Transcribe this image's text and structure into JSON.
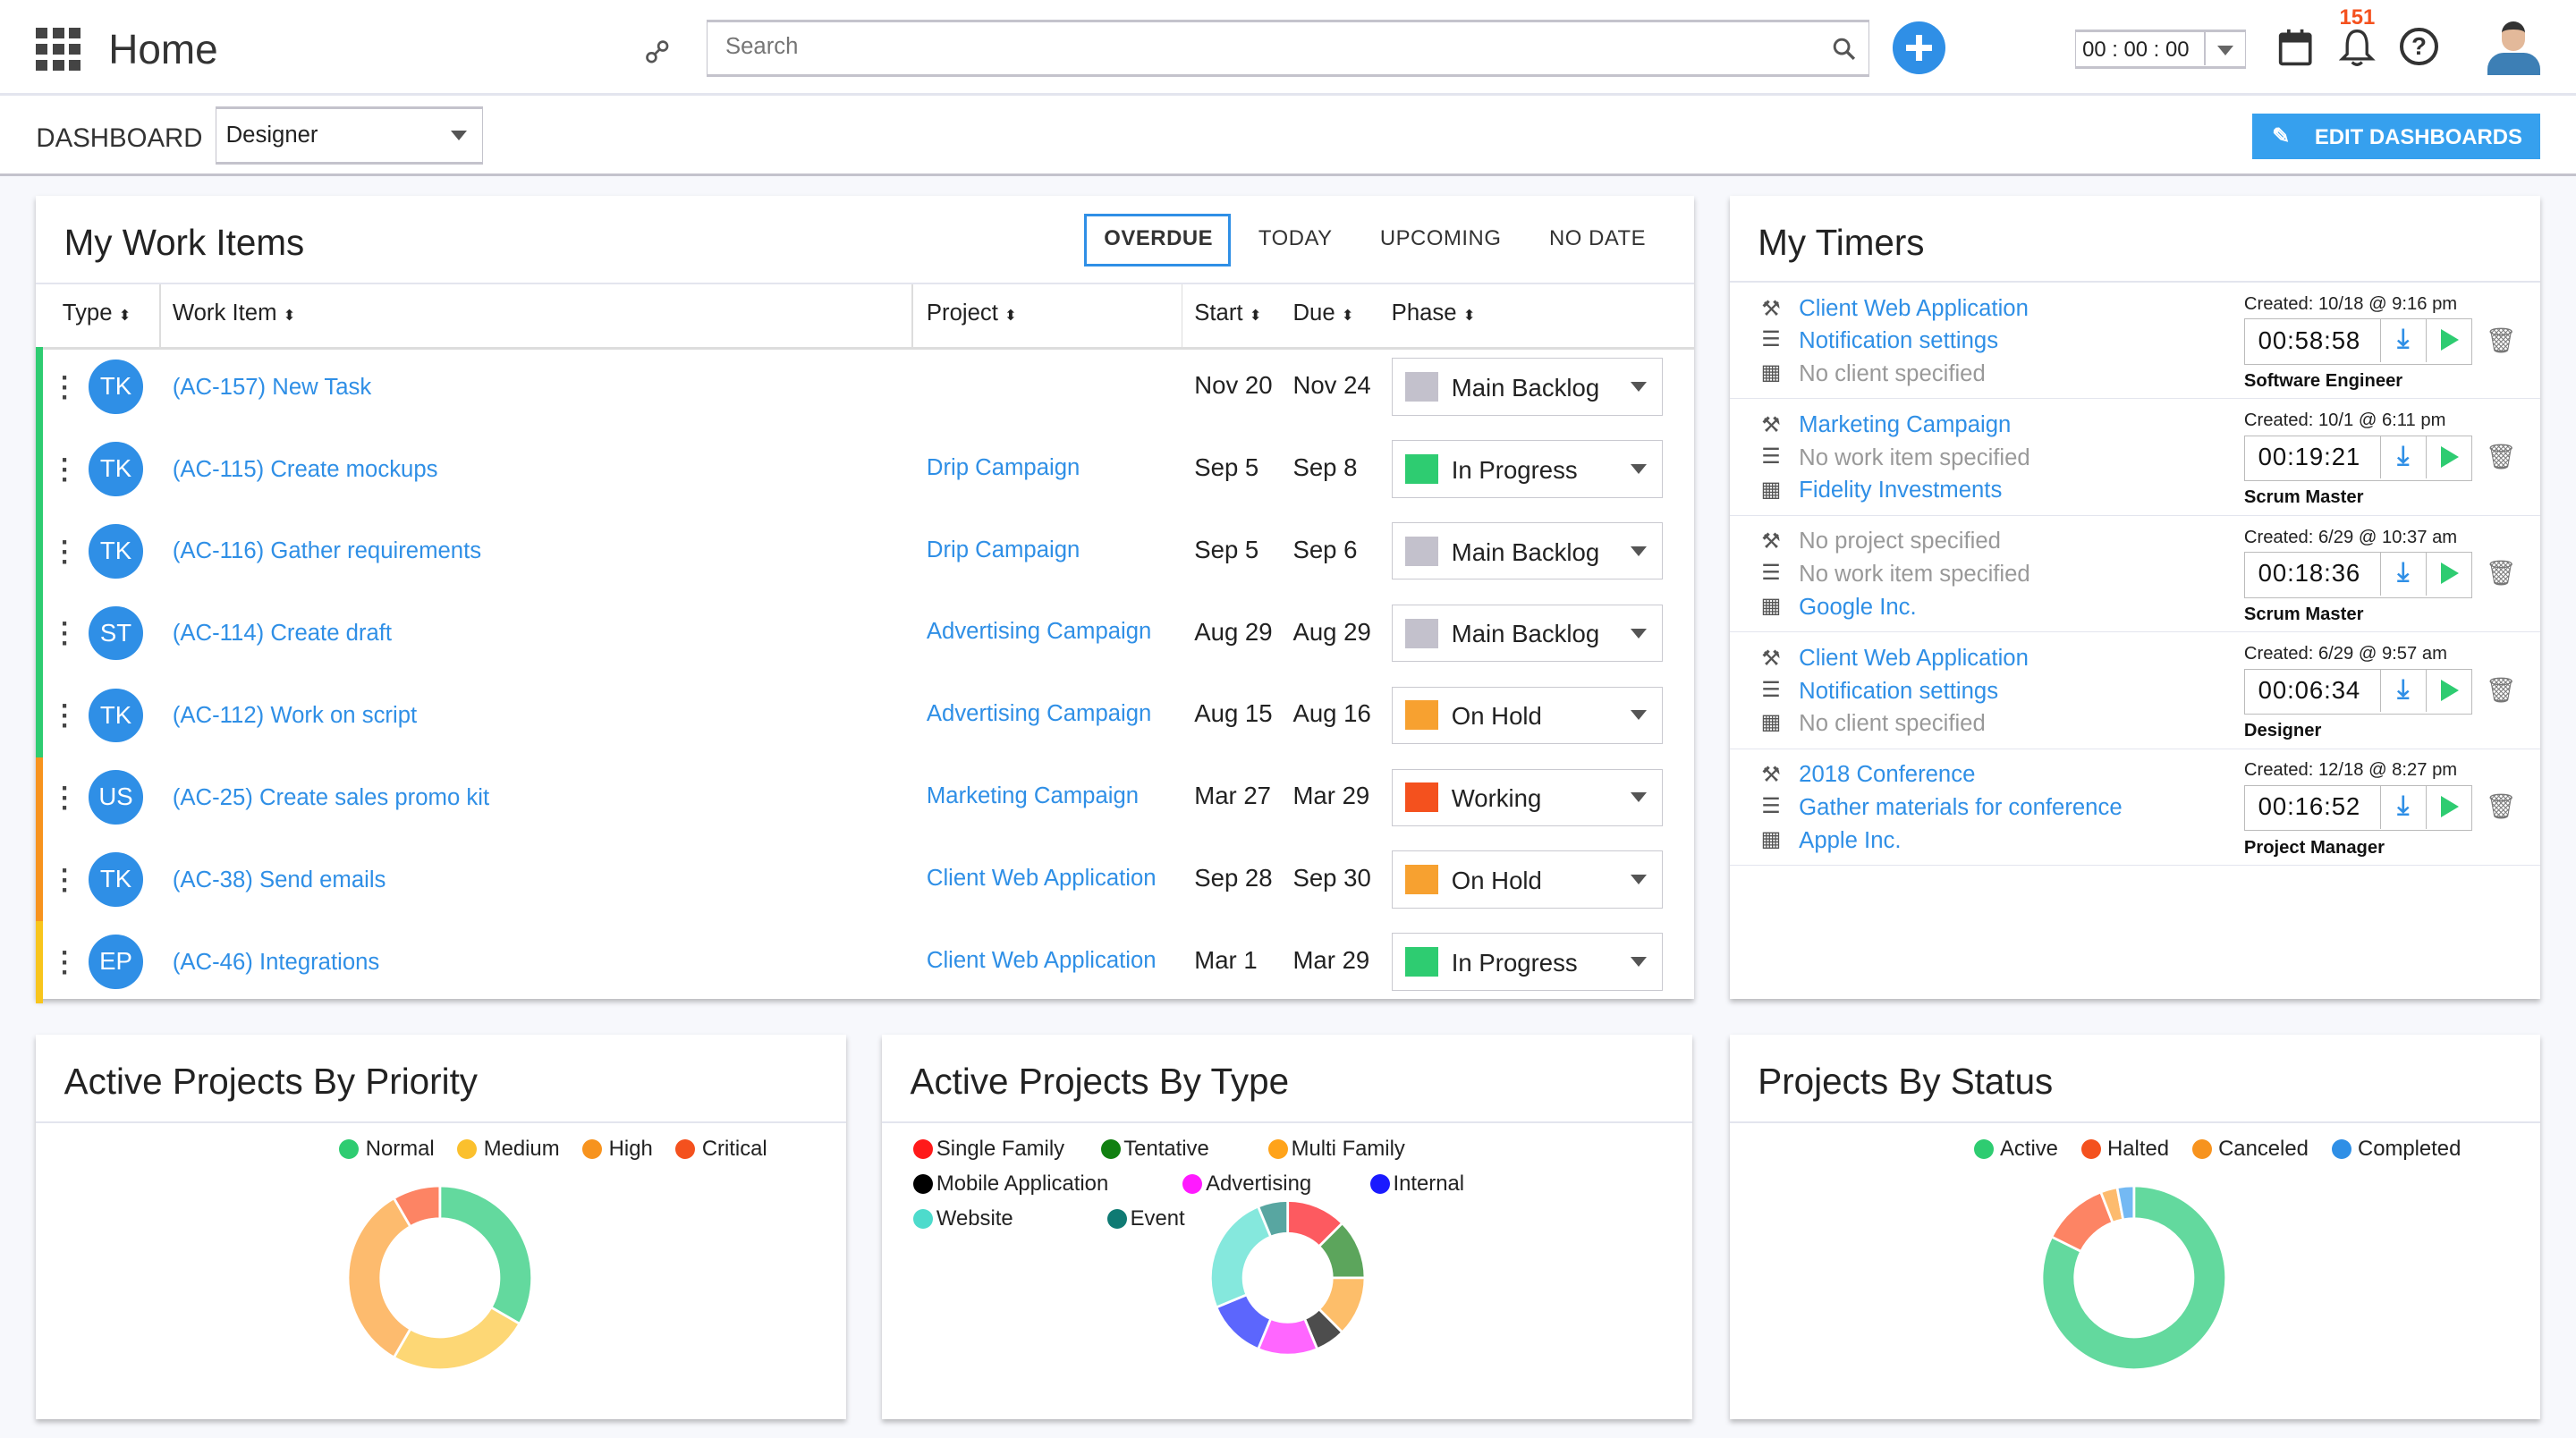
{
  "header": {
    "title": "Home",
    "search_placeholder": "Search",
    "timer": "00 : 00 : 00",
    "notification_count": "151"
  },
  "subbar": {
    "label": "DASHBOARD",
    "dashboard_select": "Designer",
    "edit_button": "EDIT DASHBOARDS"
  },
  "colors": {
    "accent": "#2f8fe6",
    "green": "#2ecc71",
    "orange": "#f7931e",
    "yellow": "#f8c51c",
    "red": "#f4511e"
  },
  "work_items": {
    "title": "My Work Items",
    "tabs": [
      "OVERDUE",
      "TODAY",
      "UPCOMING",
      "NO DATE"
    ],
    "active_tab": "OVERDUE",
    "columns": [
      "Type",
      "Work Item",
      "Project",
      "Start",
      "Due",
      "Phase"
    ],
    "rows": [
      {
        "color": "#2ecc71",
        "initials": "TK",
        "item": "(AC-157) New Task",
        "project": "",
        "start": "Nov 20",
        "due": "Nov 24",
        "phase": "Main Backlog",
        "phase_color": "#c3c1cc"
      },
      {
        "color": "#2ecc71",
        "initials": "TK",
        "item": "(AC-115) Create mockups",
        "project": "Drip Campaign",
        "start": "Sep 5",
        "due": "Sep 8",
        "phase": "In Progress",
        "phase_color": "#2ecc71"
      },
      {
        "color": "#2ecc71",
        "initials": "TK",
        "item": "(AC-116) Gather requirements",
        "project": "Drip Campaign",
        "start": "Sep 5",
        "due": "Sep 6",
        "phase": "Main Backlog",
        "phase_color": "#c3c1cc"
      },
      {
        "color": "#2ecc71",
        "initials": "ST",
        "item": "(AC-114) Create draft",
        "project": "Advertising Campaign",
        "start": "Aug 29",
        "due": "Aug 29",
        "phase": "Main Backlog",
        "phase_color": "#c3c1cc"
      },
      {
        "color": "#2ecc71",
        "initials": "TK",
        "item": "(AC-112) Work on script",
        "project": "Advertising Campaign",
        "start": "Aug 15",
        "due": "Aug 16",
        "phase": "On Hold",
        "phase_color": "#f7a130"
      },
      {
        "color": "#f7931e",
        "initials": "US",
        "item": "(AC-25) Create sales promo kit",
        "project": "Marketing Campaign",
        "start": "Mar 27",
        "due": "Mar 29",
        "phase": "Working",
        "phase_color": "#f4511e"
      },
      {
        "color": "#f7931e",
        "initials": "TK",
        "item": "(AC-38) Send emails",
        "project": "Client Web Application",
        "start": "Sep 28",
        "due": "Sep 30",
        "phase": "On Hold",
        "phase_color": "#f7a130"
      },
      {
        "color": "#f8c51c",
        "initials": "EP",
        "item": "(AC-46) Integrations",
        "project": "Client Web Application",
        "start": "Mar 1",
        "due": "Mar 29",
        "phase": "In Progress",
        "phase_color": "#2ecc71"
      }
    ]
  },
  "timers": {
    "title": "My Timers",
    "rows": [
      {
        "project": "Client Web Application",
        "project_set": true,
        "work_item": "Notification settings",
        "work_item_set": true,
        "client": "No client specified",
        "client_set": false,
        "created": "Created: 10/18 @ 9:16 pm",
        "time": "00:58:58",
        "role": "Software Engineer"
      },
      {
        "project": "Marketing Campaign",
        "project_set": true,
        "work_item": "No work item specified",
        "work_item_set": false,
        "client": "Fidelity Investments",
        "client_set": true,
        "created": "Created: 10/1 @ 6:11 pm",
        "time": "00:19:21",
        "role": "Scrum Master"
      },
      {
        "project": "No project specified",
        "project_set": false,
        "work_item": "No work item specified",
        "work_item_set": false,
        "client": "Google Inc.",
        "client_set": true,
        "created": "Created: 6/29 @ 10:37 am",
        "time": "00:18:36",
        "role": "Scrum Master"
      },
      {
        "project": "Client Web Application",
        "project_set": true,
        "work_item": "Notification settings",
        "work_item_set": true,
        "client": "No client specified",
        "client_set": false,
        "created": "Created: 6/29 @ 9:57 am",
        "time": "00:06:34",
        "role": "Designer"
      },
      {
        "project": "2018 Conference",
        "project_set": true,
        "work_item": "Gather materials for conference",
        "work_item_set": true,
        "client": "Apple Inc.",
        "client_set": true,
        "created": "Created: 12/18 @ 8:27 pm",
        "time": "00:16:52",
        "role": "Project Manager"
      }
    ]
  },
  "chart_data": [
    {
      "type": "pie",
      "title": "Active Projects By Priority",
      "legend": "top-right",
      "categories": [
        "Normal",
        "Medium",
        "High",
        "Critical"
      ],
      "values": [
        4,
        3,
        4,
        1
      ],
      "colors": [
        "#2ecc71",
        "#fbc02d",
        "#f7931e",
        "#f4511e"
      ],
      "slice_colors": [
        "#63d99e",
        "#fdd775",
        "#fdbb6e",
        "#fd8464"
      ]
    },
    {
      "type": "pie",
      "title": "Active Projects By Type",
      "legend": "top-left",
      "categories": [
        "Single Family",
        "Tentative",
        "Multi Family",
        "Mobile Application",
        "Advertising",
        "Internal",
        "Website",
        "Event"
      ],
      "values": [
        2,
        2,
        2,
        1,
        2,
        2,
        4,
        1
      ],
      "colors": [
        "#ff1a1a",
        "#118011",
        "#ffa31a",
        "#000000",
        "#ff1aff",
        "#1a1aff",
        "#4ddbcc",
        "#0f7a73"
      ],
      "slice_colors": [
        "#fd5a60",
        "#5ca55c",
        "#fdbe6a",
        "#4d4d4d",
        "#ff66ff",
        "#5c66fd",
        "#85e8dd",
        "#58a6a1"
      ]
    },
    {
      "type": "pie",
      "title": "Projects By Status",
      "legend": "top-right",
      "categories": [
        "Active",
        "Halted",
        "Canceled",
        "Completed"
      ],
      "values": [
        28,
        4,
        1,
        1
      ],
      "colors": [
        "#2ecc71",
        "#f4511e",
        "#f7931e",
        "#2f8fe6"
      ],
      "slice_colors": [
        "#63d99e",
        "#fd8464",
        "#fdbb6e",
        "#74b9f3"
      ]
    }
  ]
}
